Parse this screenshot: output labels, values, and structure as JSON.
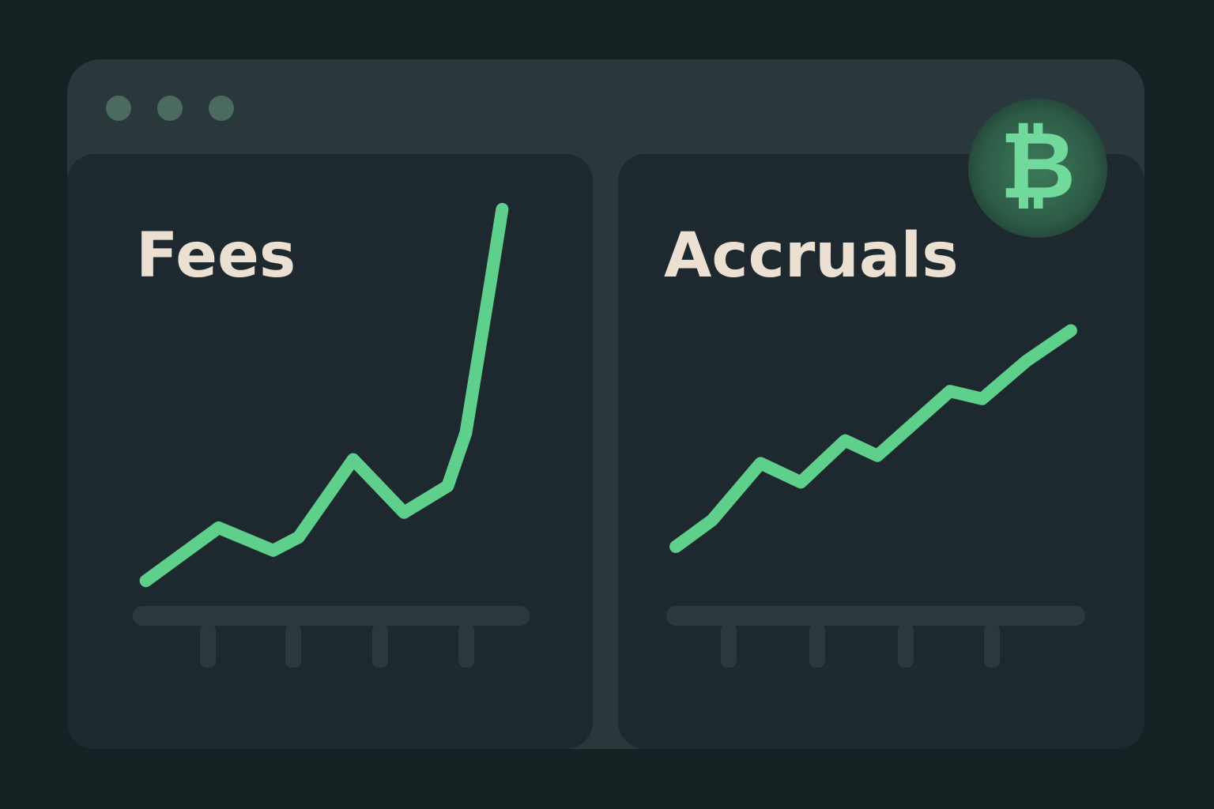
{
  "chart_data": [
    {
      "type": "line",
      "title": "Fees",
      "color": "#5fcf8c",
      "x": [
        1,
        21,
        36,
        43,
        58,
        64,
        72,
        84,
        89,
        96,
        99
      ],
      "values": [
        1,
        15,
        9,
        12.5,
        33,
        27,
        19,
        26,
        40,
        81,
        99
      ],
      "xlim": [
        0,
        100
      ],
      "ylim": [
        0,
        100
      ]
    },
    {
      "type": "line",
      "title": "Accruals",
      "color": "#5fcf8c",
      "x": [
        1,
        10,
        22,
        32,
        43,
        51,
        69,
        77,
        88,
        99
      ],
      "values": [
        10,
        17,
        32,
        27,
        38,
        34,
        51,
        49,
        59,
        67
      ],
      "xlim": [
        0,
        100
      ],
      "ylim": [
        0,
        100
      ]
    }
  ],
  "badge": "₿"
}
